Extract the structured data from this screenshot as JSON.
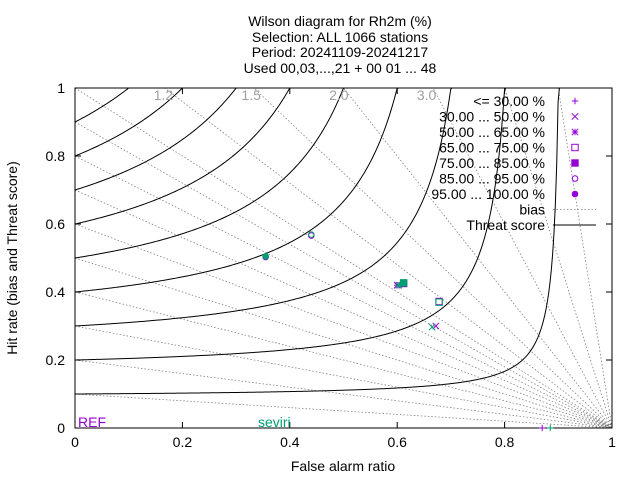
{
  "chart_data": {
    "type": "scatter",
    "title_lines": [
      "Wilson diagram  for Rh2m (%)",
      "Selection: ALL    1066 stations",
      "Period: 20241109-20241217",
      "Used 00,03,...,21 + 00 01 ... 48"
    ],
    "xlabel": "False alarm ratio",
    "ylabel": "Hit rate (bias and Threat score)",
    "xlim": [
      0,
      1
    ],
    "ylim": [
      0,
      1
    ],
    "x_ticks": [
      "0",
      "0.2",
      "0.4",
      "0.6",
      "0.8",
      "1"
    ],
    "y_ticks": [
      "0",
      "0.2",
      "0.4",
      "0.6",
      "0.8",
      "1"
    ],
    "bias_values": [
      0.1,
      0.2,
      0.3,
      0.4,
      0.5,
      0.6,
      0.7,
      0.8,
      0.9,
      1.0,
      1.2,
      1.5,
      2.0,
      3.0,
      5.0,
      10.0
    ],
    "bias_labels": [
      "1.2",
      "1.5",
      "2.0",
      "3.0"
    ],
    "threat_values": [
      0.1,
      0.2,
      0.3,
      0.4,
      0.5,
      0.6,
      0.7,
      0.8,
      0.9
    ],
    "legend": {
      "placement": "top-right",
      "entries": [
        {
          "label": "<= 30.00 %",
          "marker": "plus"
        },
        {
          "label": "30.00 ... 50.00 %",
          "marker": "cross"
        },
        {
          "label": "50.00 ... 65.00 %",
          "marker": "star"
        },
        {
          "label": "65.00 ... 75.00 %",
          "marker": "open-square"
        },
        {
          "label": "75.00 ... 85.00 %",
          "marker": "filled-square"
        },
        {
          "label": "85.00 ... 95.00 %",
          "marker": "open-circle"
        },
        {
          "label": "95.00 ... 100.00 %",
          "marker": "filled-circle"
        }
      ],
      "bias_label": "bias",
      "threat_label": "Threat score"
    },
    "series": [
      {
        "name": "REF",
        "color": "#9400d3",
        "points": [
          {
            "x": 0.87,
            "y": 0.0,
            "marker": "plus"
          },
          {
            "x": 0.672,
            "y": 0.3,
            "marker": "cross"
          },
          {
            "x": 0.6,
            "y": 0.42,
            "marker": "star"
          },
          {
            "x": 0.678,
            "y": 0.372,
            "marker": "open-square"
          },
          {
            "x": 0.612,
            "y": 0.425,
            "marker": "filled-square"
          },
          {
            "x": 0.44,
            "y": 0.566,
            "marker": "open-circle"
          },
          {
            "x": 0.355,
            "y": 0.503,
            "marker": "filled-circle"
          }
        ]
      },
      {
        "name": "seviri",
        "color": "#009e73",
        "points": [
          {
            "x": 0.885,
            "y": 0.0,
            "marker": "plus"
          },
          {
            "x": 0.665,
            "y": 0.297,
            "marker": "cross"
          },
          {
            "x": 0.603,
            "y": 0.42,
            "marker": "star"
          },
          {
            "x": 0.678,
            "y": 0.37,
            "marker": "open-square"
          },
          {
            "x": 0.612,
            "y": 0.427,
            "marker": "filled-square"
          },
          {
            "x": 0.44,
            "y": 0.569,
            "marker": "open-circle"
          },
          {
            "x": 0.355,
            "y": 0.505,
            "marker": "filled-circle"
          }
        ]
      }
    ]
  }
}
